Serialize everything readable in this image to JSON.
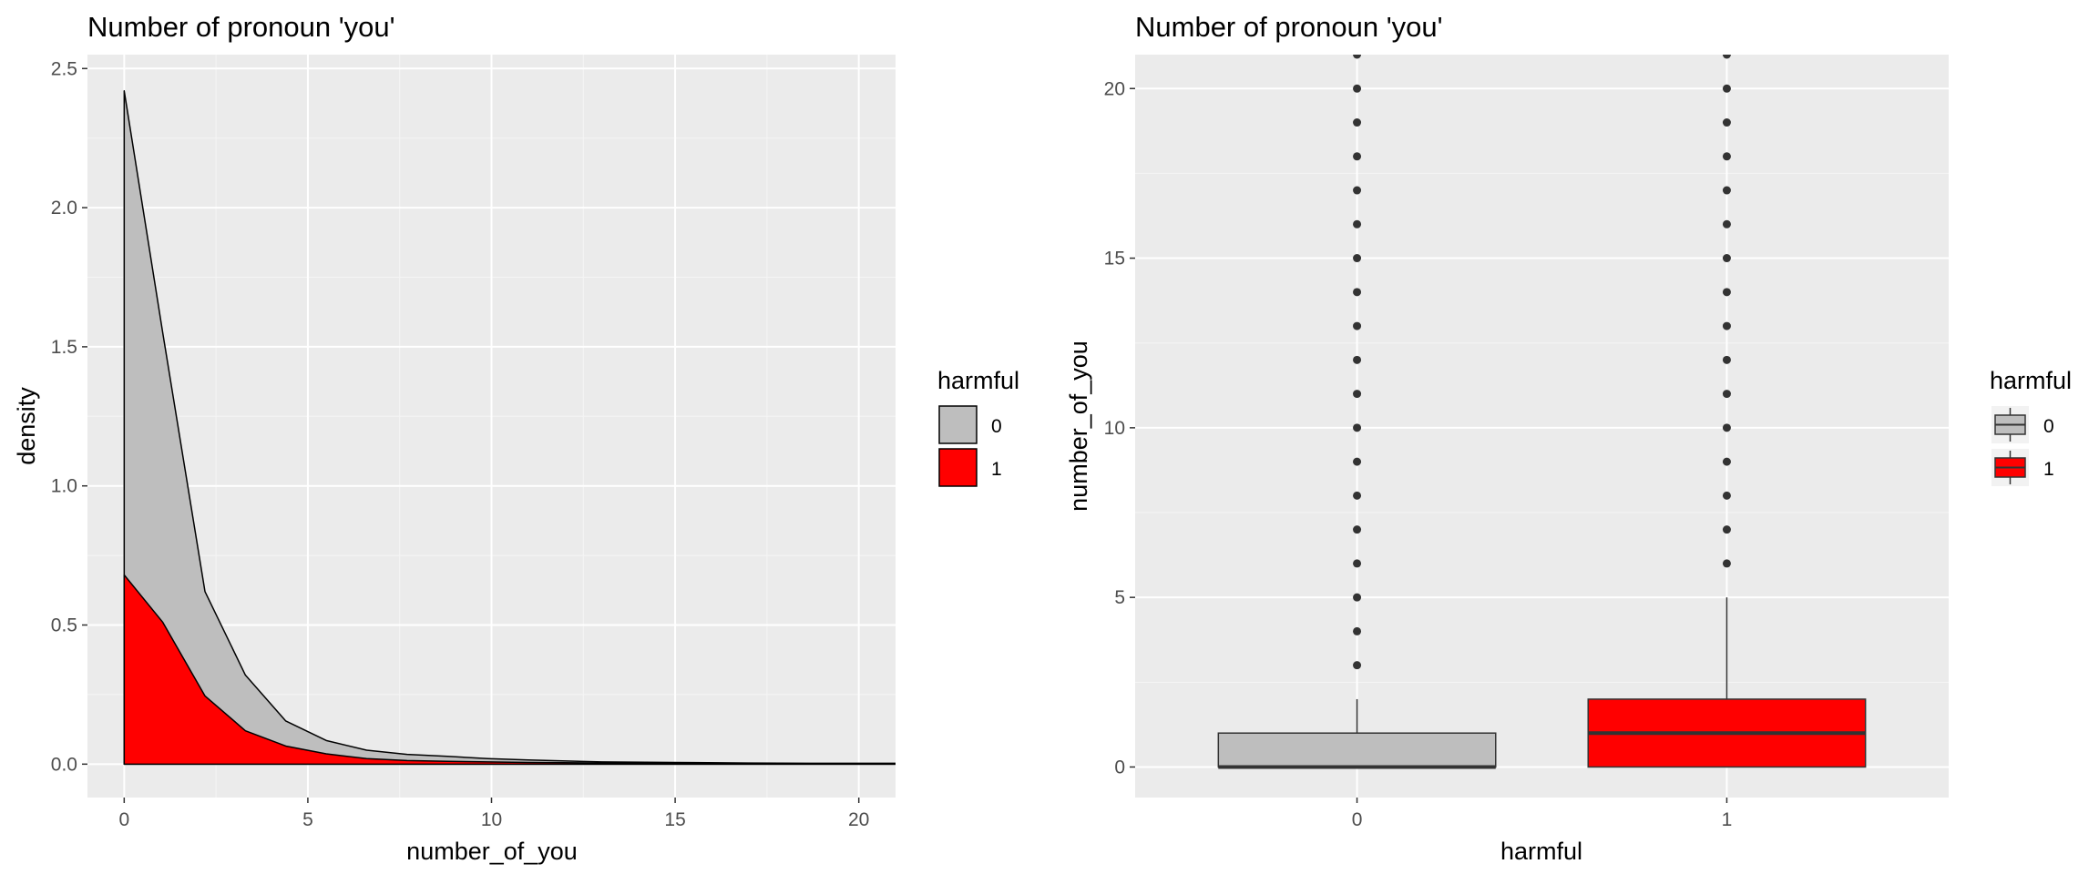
{
  "chart_data": [
    {
      "type": "area",
      "subtype": "stacked-density",
      "title": "Number of pronoun 'you'",
      "xlabel": "number_of_you",
      "ylabel": "density",
      "xlim": [
        -1,
        21
      ],
      "ylim": [
        -0.12,
        2.55
      ],
      "xticks": [
        0,
        5,
        10,
        15,
        20
      ],
      "yticks": [
        0.0,
        0.5,
        1.0,
        1.5,
        2.0,
        2.5
      ],
      "ytick_labels": [
        "0.0",
        "0.5",
        "1.0",
        "1.5",
        "2.0",
        "2.5"
      ],
      "grid": true,
      "legend": {
        "title": "harmful",
        "position": "right",
        "labels": [
          "0",
          "1"
        ]
      },
      "x": [
        0,
        1.05,
        2.2,
        3.3,
        4.4,
        5.5,
        6.6,
        7.7,
        8.8,
        9.9,
        11,
        13,
        15,
        17,
        19,
        21
      ],
      "series": [
        {
          "name": "0",
          "color": "#bebebe",
          "values": [
            2.42,
            1.55,
            0.62,
            0.32,
            0.155,
            0.085,
            0.05,
            0.035,
            0.028,
            0.02,
            0.015,
            0.008,
            0.006,
            0.004,
            0.003,
            0.003
          ]
        },
        {
          "name": "1",
          "color": "#ff0000",
          "values": [
            0.68,
            0.51,
            0.245,
            0.12,
            0.065,
            0.037,
            0.02,
            0.013,
            0.01,
            0.008,
            0.006,
            0.004,
            0.003,
            0.002,
            0.002,
            0.002
          ]
        }
      ]
    },
    {
      "type": "box",
      "title": "Number of pronoun 'you'",
      "xlabel": "harmful",
      "ylabel": "number_of_you",
      "categories": [
        "0",
        "1"
      ],
      "ylim": [
        -0.9,
        21
      ],
      "yticks": [
        0,
        5,
        10,
        15,
        20
      ],
      "grid": true,
      "legend": {
        "title": "harmful",
        "position": "right",
        "labels": [
          "0",
          "1"
        ]
      },
      "boxes": [
        {
          "name": "0",
          "color": "#bebebe",
          "min": 0,
          "q1": 0,
          "median": 0,
          "q3": 1,
          "whisker_high": 2,
          "outliers": [
            3,
            4,
            5,
            6,
            7,
            8,
            9,
            10,
            11,
            12,
            13,
            14,
            15,
            16,
            17,
            18,
            19,
            20,
            21
          ]
        },
        {
          "name": "1",
          "color": "#ff0000",
          "min": 0,
          "q1": 0,
          "median": 1,
          "q3": 2,
          "whisker_high": 5,
          "outliers": [
            6,
            7,
            8,
            9,
            10,
            11,
            12,
            13,
            14,
            15,
            16,
            17,
            18,
            19,
            20,
            21
          ]
        }
      ]
    }
  ]
}
